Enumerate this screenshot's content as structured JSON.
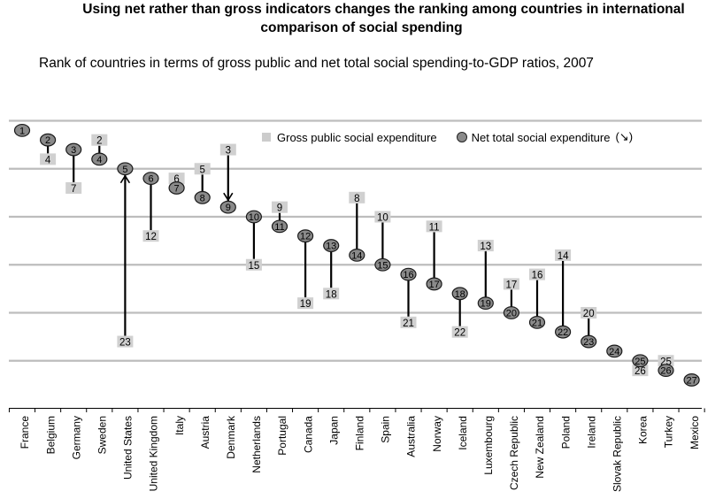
{
  "title_line1": "Using net rather than gross indicators changes the ranking among countries in international",
  "title_line2": "comparison of social spending",
  "chart_data": {
    "type": "scatter",
    "subtitle": "Rank of countries in terms of gross public and net total social spending-to-GDP ratios, 2007",
    "categories": [
      "France",
      "Belgium",
      "Germany",
      "Sweden",
      "United States",
      "United Kingdom",
      "Italy",
      "Austria",
      "Denmark",
      "Netherlands",
      "Portugal",
      "Canada",
      "Japan",
      "Finland",
      "Spain",
      "Australia",
      "Norway",
      "Iceland",
      "Luxembourg",
      "Czech Republic",
      "New Zealand",
      "Poland",
      "Ireland",
      "Slovak Republic",
      "Korea",
      "Turkey",
      "Mexico"
    ],
    "series": [
      {
        "name": "Gross public social expenditure",
        "marker": "square",
        "color": "#cccccc",
        "values": [
          1,
          4,
          7,
          2,
          23,
          12,
          6,
          5,
          3,
          15,
          9,
          19,
          18,
          8,
          10,
          21,
          11,
          22,
          13,
          17,
          16,
          14,
          20,
          24,
          26,
          25,
          27
        ]
      },
      {
        "name": "Net total social expenditure",
        "marker": "circle",
        "color": "#8a8a8a",
        "values": [
          1,
          2,
          3,
          4,
          5,
          6,
          7,
          8,
          9,
          10,
          11,
          12,
          13,
          14,
          15,
          16,
          17,
          18,
          19,
          20,
          21,
          22,
          23,
          24,
          25,
          26,
          27
        ]
      }
    ],
    "legend_arrow": "(↘)",
    "legend_position": "top-right",
    "grid": true,
    "ylim": [
      0,
      28
    ],
    "y_inverted": true
  }
}
